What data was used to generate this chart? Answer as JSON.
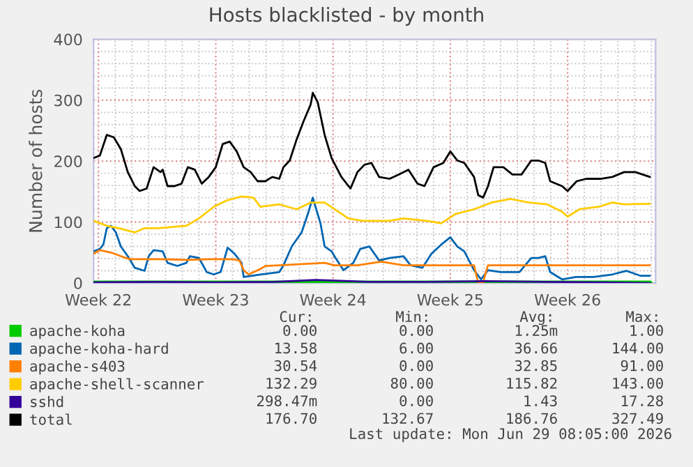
{
  "chart_data": {
    "type": "line",
    "title": "Hosts blacklisted - by month",
    "ylabel": "Number of hosts",
    "xlim": [
      "2026-05-24T17:00",
      "2026-06-27T06:00"
    ],
    "ylim": [
      0,
      400
    ],
    "xticks": [
      {
        "value": "2026-05-25",
        "label": "Week 22"
      },
      {
        "value": "2026-06-01",
        "label": "Week 23"
      },
      {
        "value": "2026-06-08",
        "label": "Week 24"
      },
      {
        "value": "2026-06-15",
        "label": "Week 25"
      },
      {
        "value": "2026-06-22",
        "label": "Week 26"
      }
    ],
    "yticks": [
      0,
      100,
      200,
      300,
      400
    ],
    "grid": true,
    "legend": "bottom",
    "line_style": "solid",
    "marker": "none",
    "series": [
      {
        "name": "apache-koha",
        "color": "#00cc00",
        "x": [
          "2026-05-24T17:00",
          "2026-06-26T22:00"
        ],
        "values": [
          0,
          0
        ]
      },
      {
        "name": "apache-koha-hard",
        "color": "#0066b3",
        "x": [
          "2026-05-24T17:00",
          "2026-05-25T02:00",
          "2026-05-25T07:00",
          "2026-05-25T12:00",
          "2026-05-25T18:00",
          "2026-05-26T01:00",
          "2026-05-26T08:00",
          "2026-05-26T18:00",
          "2026-05-27T04:00",
          "2026-05-27T18:00",
          "2026-05-28T00:00",
          "2026-05-28T07:00",
          "2026-05-28T20:00",
          "2026-05-29T03:00",
          "2026-05-29T17:00",
          "2026-05-30T06:00",
          "2026-05-30T11:00",
          "2026-05-31T00:00",
          "2026-05-31T11:00",
          "2026-05-31T21:00",
          "2026-06-01T07:00",
          "2026-06-01T17:00",
          "2026-06-02T03:00",
          "2026-06-02T13:00",
          "2026-06-02T16:00",
          "2026-06-03T16:00",
          "2026-06-04T19:00",
          "2026-06-05T01:00",
          "2026-06-05T13:00",
          "2026-06-06T03:00",
          "2026-06-06T13:00",
          "2026-06-06T19:00",
          "2026-06-07T06:00",
          "2026-06-07T12:00",
          "2026-06-07T22:00",
          "2026-06-08T02:00",
          "2026-06-08T15:00",
          "2026-06-09T05:00",
          "2026-06-09T15:00",
          "2026-06-10T04:00",
          "2026-06-10T18:00",
          "2026-06-11T09:00",
          "2026-06-12T05:00",
          "2026-06-12T15:00",
          "2026-06-13T08:00",
          "2026-06-13T21:00",
          "2026-06-14T11:00",
          "2026-06-15T00:00",
          "2026-06-15T10:00",
          "2026-06-15T20:00",
          "2026-06-16T10:00",
          "2026-06-16T20:00",
          "2026-06-17T06:00",
          "2026-06-18T00:00",
          "2026-06-19T03:00",
          "2026-06-19T20:00",
          "2026-06-20T06:00",
          "2026-06-20T16:00",
          "2026-06-20T23:00",
          "2026-06-21T16:00",
          "2026-06-22T12:00",
          "2026-06-23T13:00",
          "2026-06-24T16:00",
          "2026-06-25T12:00",
          "2026-06-26T08:00",
          "2026-06-26T22:00"
        ],
        "values": [
          52,
          56,
          63,
          90,
          94,
          83,
          60,
          44,
          25,
          20,
          44,
          54,
          52,
          33,
          28,
          33,
          44,
          41,
          18,
          14,
          18,
          58,
          48,
          33,
          10,
          14,
          18,
          29,
          60,
          83,
          117,
          140,
          98,
          60,
          52,
          44,
          21,
          33,
          56,
          60,
          37,
          41,
          44,
          29,
          25,
          48,
          63,
          75,
          60,
          52,
          21,
          6,
          21,
          18,
          18,
          41,
          41,
          44,
          18,
          6,
          10,
          10,
          14,
          20,
          12,
          12
        ]
      },
      {
        "name": "apache-s403",
        "color": "#ff8000",
        "x": [
          "2026-05-24T17:00",
          "2026-05-25T02:00",
          "2026-05-25T18:00",
          "2026-05-26T08:00",
          "2026-05-26T21:00",
          "2026-05-28T00:00",
          "2026-05-28T20:00",
          "2026-05-30T06:00",
          "2026-05-31T14:00",
          "2026-06-02T00:00",
          "2026-06-02T10:00",
          "2026-06-02T16:00",
          "2026-06-02T23:00",
          "2026-06-03T12:00",
          "2026-06-03T19:00",
          "2026-06-03T23:00",
          "2026-06-04T19:00",
          "2026-06-06T03:00",
          "2026-06-07T12:00",
          "2026-06-08T02:00",
          "2026-06-09T11:00",
          "2026-06-10T21:00",
          "2026-06-12T05:00",
          "2026-06-13T14:00",
          "2026-06-16T10:00",
          "2026-06-16T13:00",
          "2026-06-16T16:00",
          "2026-06-16T23:00",
          "2026-06-17T02:00",
          "2026-06-17T06:00",
          "2026-06-19T03:00",
          "2026-06-21T22:00",
          "2026-06-26T22:00"
        ],
        "values": [
          48,
          54,
          50,
          44,
          39,
          39,
          39,
          38,
          39,
          39,
          37,
          21,
          14,
          21,
          25,
          28,
          29,
          31,
          33,
          29,
          29,
          35,
          29,
          29,
          29,
          14,
          0,
          0,
          14,
          29,
          29,
          29,
          29
        ]
      },
      {
        "name": "apache-shell-scanner",
        "color": "#ffcc00",
        "x": [
          "2026-05-24T17:00",
          "2026-05-25T12:00",
          "2026-05-26T08:00",
          "2026-05-27T04:00",
          "2026-05-27T18:00",
          "2026-05-28T14:00",
          "2026-05-29T10:00",
          "2026-05-30T06:00",
          "2026-05-31T00:00",
          "2026-05-31T21:00",
          "2026-06-01T17:00",
          "2026-06-02T13:00",
          "2026-06-03T06:00",
          "2026-06-03T16:00",
          "2026-06-04T19:00",
          "2026-06-05T20:00",
          "2026-06-06T16:00",
          "2026-06-07T12:00",
          "2026-06-08T22:00",
          "2026-06-09T18:00",
          "2026-06-11T09:00",
          "2026-06-12T05:00",
          "2026-06-13T14:00",
          "2026-06-14T11:00",
          "2026-06-15T07:00",
          "2026-06-16T10:00",
          "2026-06-17T11:00",
          "2026-06-18T14:00",
          "2026-06-19T17:00",
          "2026-06-20T19:00",
          "2026-06-21T16:00",
          "2026-06-22T00:00",
          "2026-06-22T17:00",
          "2026-06-23T20:00",
          "2026-06-24T16:00",
          "2026-06-25T09:00",
          "2026-06-26T22:00"
        ],
        "values": [
          102,
          94,
          89,
          83,
          90,
          90,
          92,
          94,
          106,
          125,
          136,
          142,
          140,
          125,
          129,
          121,
          132,
          132,
          106,
          102,
          102,
          106,
          102,
          98,
          113,
          121,
          132,
          138,
          132,
          129,
          117,
          109,
          121,
          125,
          132,
          129,
          130
        ]
      },
      {
        "name": "sshd",
        "color": "#330099",
        "x": [
          "2026-05-24T17:00",
          "2026-05-28T12:00",
          "2026-06-01T00:00",
          "2026-06-04T12:00",
          "2026-06-06T23:00",
          "2026-06-10T02:00",
          "2026-06-13T14:00",
          "2026-06-17T02:00",
          "2026-06-20T14:00",
          "2026-06-24T02:00",
          "2026-06-26T22:00"
        ],
        "values": [
          1,
          2,
          1,
          2,
          5,
          2,
          2,
          3,
          2,
          1,
          0
        ]
      },
      {
        "name": "total",
        "color": "#000000",
        "x": [
          "2026-05-24T17:00",
          "2026-05-25T02:00",
          "2026-05-25T12:00",
          "2026-05-25T22:00",
          "2026-05-26T08:00",
          "2026-05-26T18:00",
          "2026-05-27T04:00",
          "2026-05-27T11:00",
          "2026-05-27T21:00",
          "2026-05-28T07:00",
          "2026-05-28T17:00",
          "2026-05-28T20:00",
          "2026-05-29T03:00",
          "2026-05-29T13:00",
          "2026-05-29T23:00",
          "2026-05-30T08:00",
          "2026-05-30T18:00",
          "2026-05-31T04:00",
          "2026-05-31T14:00",
          "2026-06-01T00:00",
          "2026-06-01T10:00",
          "2026-06-01T20:00",
          "2026-06-02T06:00",
          "2026-06-02T16:00",
          "2026-06-03T02:00",
          "2026-06-03T12:00",
          "2026-06-03T23:00",
          "2026-06-04T09:00",
          "2026-06-04T19:00",
          "2026-06-05T01:00",
          "2026-06-05T10:00",
          "2026-06-05T20:00",
          "2026-06-06T06:00",
          "2026-06-06T16:00",
          "2026-06-06T19:00",
          "2026-06-07T02:00",
          "2026-06-07T12:00",
          "2026-06-07T22:00",
          "2026-06-08T12:00",
          "2026-06-09T01:00",
          "2026-06-09T11:00",
          "2026-06-09T21:00",
          "2026-06-10T07:00",
          "2026-06-10T18:00",
          "2026-06-11T09:00",
          "2026-06-11T22:00",
          "2026-06-12T12:00",
          "2026-06-13T01:00",
          "2026-06-13T11:00",
          "2026-06-14T00:00",
          "2026-06-14T14:00",
          "2026-06-15T00:00",
          "2026-06-15T10:00",
          "2026-06-15T20:00",
          "2026-06-16T10:00",
          "2026-06-16T16:00",
          "2026-06-16T23:00",
          "2026-06-17T06:00",
          "2026-06-17T14:00",
          "2026-06-18T04:00",
          "2026-06-18T17:00",
          "2026-06-19T06:00",
          "2026-06-19T20:00",
          "2026-06-20T06:00",
          "2026-06-20T16:00",
          "2026-06-20T23:00",
          "2026-06-21T16:00",
          "2026-06-22T00:00",
          "2026-06-22T13:00",
          "2026-06-23T03:00",
          "2026-06-23T23:00",
          "2026-06-24T16:00",
          "2026-06-25T09:00",
          "2026-06-26T01:00",
          "2026-06-26T22:00"
        ],
        "values": [
          205,
          209,
          243,
          239,
          220,
          182,
          159,
          151,
          155,
          190,
          182,
          186,
          159,
          159,
          163,
          190,
          186,
          163,
          174,
          190,
          228,
          232,
          216,
          190,
          182,
          167,
          167,
          174,
          171,
          190,
          201,
          236,
          266,
          293,
          312,
          297,
          243,
          205,
          174,
          155,
          182,
          194,
          197,
          174,
          171,
          178,
          186,
          163,
          159,
          190,
          197,
          216,
          201,
          197,
          174,
          144,
          140,
          159,
          190,
          190,
          178,
          178,
          201,
          201,
          197,
          167,
          159,
          151,
          167,
          171,
          171,
          174,
          182,
          182,
          174
        ]
      }
    ],
    "annotations": [
      "Cur:",
      "Min:",
      "Avg:",
      "Max:",
      "0.00",
      "0.00",
      "1.25m",
      "1.00",
      "13.58",
      "6.00",
      "36.66",
      "144.00",
      "30.54",
      "0.00",
      "32.85",
      "91.00",
      "132.29",
      "80.00",
      "115.82",
      "143.00",
      "298.47m",
      "0.00",
      "1.43",
      "17.28",
      "176.70",
      "132.67",
      "186.76",
      "327.49",
      "Last update: Mon Jun 29 08:05:00 2026"
    ]
  }
}
